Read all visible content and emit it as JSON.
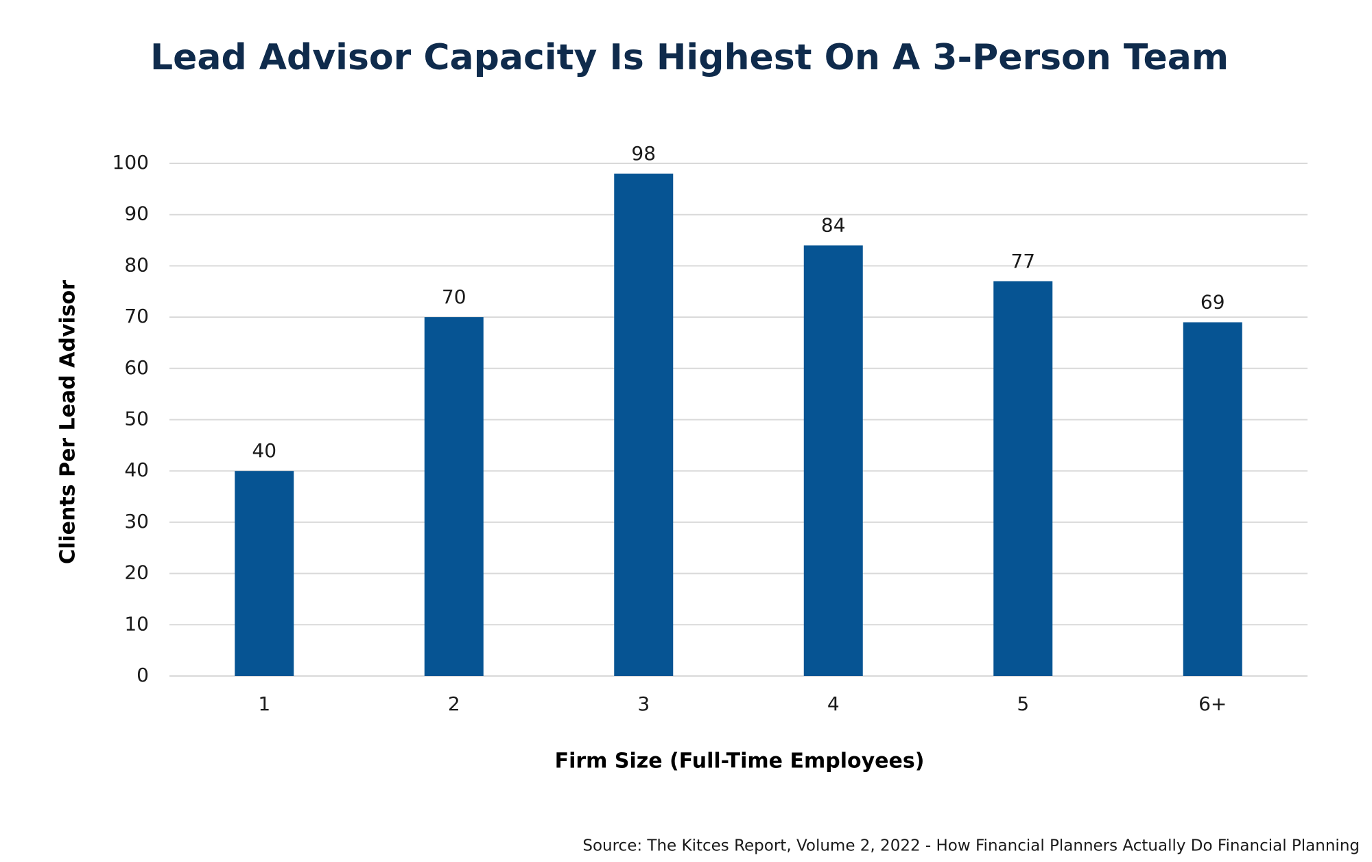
{
  "chart_data": {
    "type": "bar",
    "title": "Lead Advisor Capacity Is Highest On A 3-Person Team",
    "x_label": "Firm Size (Full-Time Employees)",
    "y_label": "Clients Per Lead Advisor",
    "source": "Source: The Kitces Report, Volume 2, 2022 - How Financial Planners Actually Do Financial Planning",
    "categories": [
      "1",
      "2",
      "3",
      "4",
      "5",
      "6+"
    ],
    "values": [
      40,
      70,
      98,
      84,
      77,
      69
    ],
    "color": "#065493",
    "ylim": [
      0,
      100
    ],
    "yticks": [
      0,
      10,
      20,
      30,
      40,
      50,
      60,
      70,
      80,
      90,
      100
    ],
    "grid": true
  }
}
